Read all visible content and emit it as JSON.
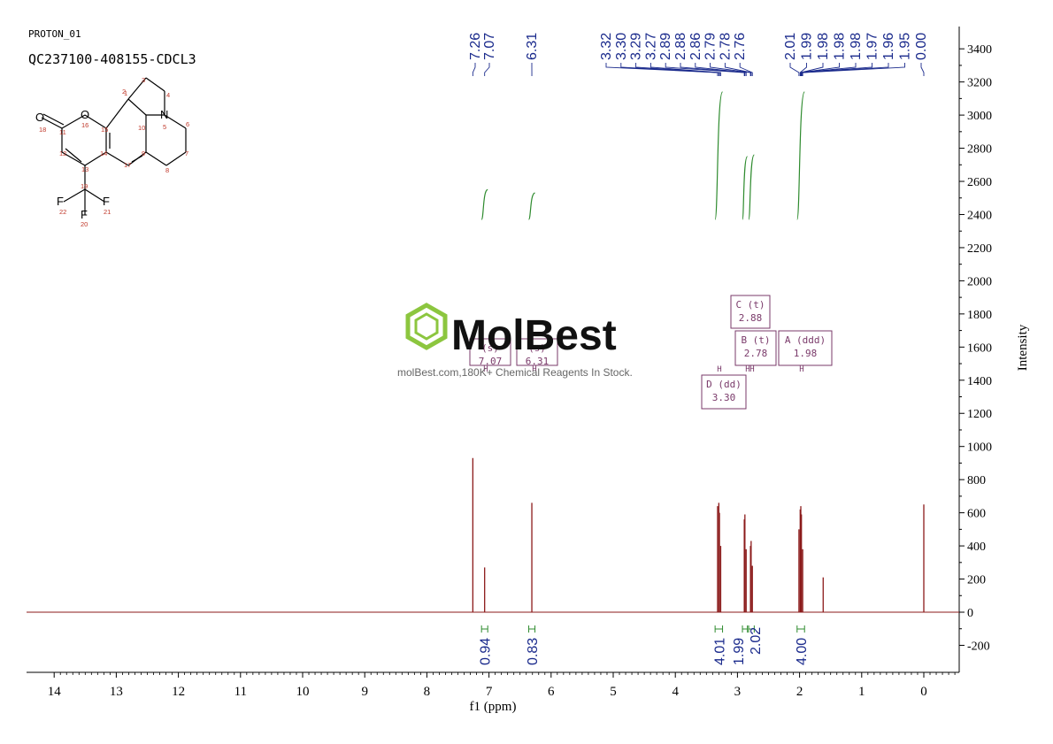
{
  "header": {
    "experiment": "PROTON_01",
    "sample": "QC237100-408155-CDCL3"
  },
  "watermark": {
    "brand": "MolBest",
    "tagline": "molBest.com,180K+ Chemical Reagents In Stock.",
    "logo_color": "#8cc63f"
  },
  "structure": {
    "atoms": [
      "1",
      "2",
      "3",
      "4",
      "5",
      "6",
      "7",
      "8",
      "9",
      "10",
      "11",
      "12",
      "13",
      "14",
      "15",
      "16",
      "17",
      "18",
      "19",
      "20",
      "21",
      "22"
    ],
    "elements": {
      "O16": "O",
      "O18": "O",
      "N5": "N",
      "F20": "F",
      "F21": "F",
      "F22": "F"
    }
  },
  "peak_labels": {
    "group1": [
      "7.26",
      "7.07"
    ],
    "group2": [
      "6.31"
    ],
    "group3": [
      "3.32",
      "3.30",
      "3.29",
      "3.27",
      "2.89",
      "2.88",
      "2.86",
      "2.79",
      "2.78",
      "2.76"
    ],
    "group4": [
      "2.01",
      "1.99",
      "1.98",
      "1.98",
      "1.98",
      "1.97",
      "1.96",
      "1.95",
      "0.00"
    ]
  },
  "multiplets": [
    {
      "letter": "C (t)",
      "shift": "2.88"
    },
    {
      "letter": "B (t)",
      "shift": "2.78"
    },
    {
      "letter": "A (ddd)",
      "shift": "1.98"
    },
    {
      "letter": "D (dd)",
      "shift": "3.30"
    },
    {
      "letter": "(s)",
      "shift": "7.07"
    },
    {
      "letter": "(s)",
      "shift": "6.31"
    }
  ],
  "colors": {
    "spectrum": "#8b1a1a",
    "integral": "#2e8b2e",
    "label": "#1a2a8c",
    "multiplet": "#7a3a6a",
    "axis": "#000000"
  },
  "chart_data": {
    "type": "line",
    "xlabel": "f1 (ppm)",
    "ylabel": "Intensity",
    "xlim": [
      14.5,
      -0.5
    ],
    "ylim": [
      -300,
      3500
    ],
    "x_reversed": true,
    "x_ticks": [
      "14",
      "13",
      "12",
      "11",
      "10",
      "9",
      "8",
      "7",
      "6",
      "5",
      "4",
      "3",
      "2",
      "1",
      "0"
    ],
    "y_ticks": [
      "-200",
      "0",
      "200",
      "400",
      "600",
      "800",
      "1000",
      "1200",
      "1400",
      "1600",
      "1800",
      "2000",
      "2200",
      "2400",
      "2600",
      "2800",
      "3000",
      "3200",
      "3400"
    ],
    "peaks": [
      {
        "ppm": 7.26,
        "height": 930
      },
      {
        "ppm": 7.07,
        "height": 270
      },
      {
        "ppm": 6.31,
        "height": 660
      },
      {
        "ppm": 3.32,
        "height": 640
      },
      {
        "ppm": 3.3,
        "height": 660
      },
      {
        "ppm": 3.29,
        "height": 600
      },
      {
        "ppm": 3.27,
        "height": 400
      },
      {
        "ppm": 2.89,
        "height": 560
      },
      {
        "ppm": 2.88,
        "height": 590
      },
      {
        "ppm": 2.86,
        "height": 380
      },
      {
        "ppm": 2.79,
        "height": 400
      },
      {
        "ppm": 2.78,
        "height": 430
      },
      {
        "ppm": 2.76,
        "height": 280
      },
      {
        "ppm": 2.01,
        "height": 500
      },
      {
        "ppm": 1.99,
        "height": 620
      },
      {
        "ppm": 1.98,
        "height": 640
      },
      {
        "ppm": 1.97,
        "height": 590
      },
      {
        "ppm": 1.95,
        "height": 380
      },
      {
        "ppm": 1.62,
        "height": 210
      },
      {
        "ppm": 0.0,
        "height": 650
      }
    ],
    "integrals": [
      {
        "from": 7.12,
        "to": 7.02,
        "value": "0.94",
        "low": 2370,
        "high": 2550
      },
      {
        "from": 6.36,
        "to": 6.26,
        "value": "0.83",
        "low": 2370,
        "high": 2530
      },
      {
        "from": 3.36,
        "to": 3.24,
        "value": "4.01",
        "low": 2370,
        "high": 3140
      },
      {
        "from": 2.92,
        "to": 2.84,
        "value": "1.99",
        "low": 2370,
        "high": 2750
      },
      {
        "from": 2.82,
        "to": 2.73,
        "value": "2.02",
        "low": 2370,
        "high": 2760
      },
      {
        "from": 2.04,
        "to": 1.92,
        "value": "4.00",
        "low": 2370,
        "high": 3140
      }
    ]
  }
}
